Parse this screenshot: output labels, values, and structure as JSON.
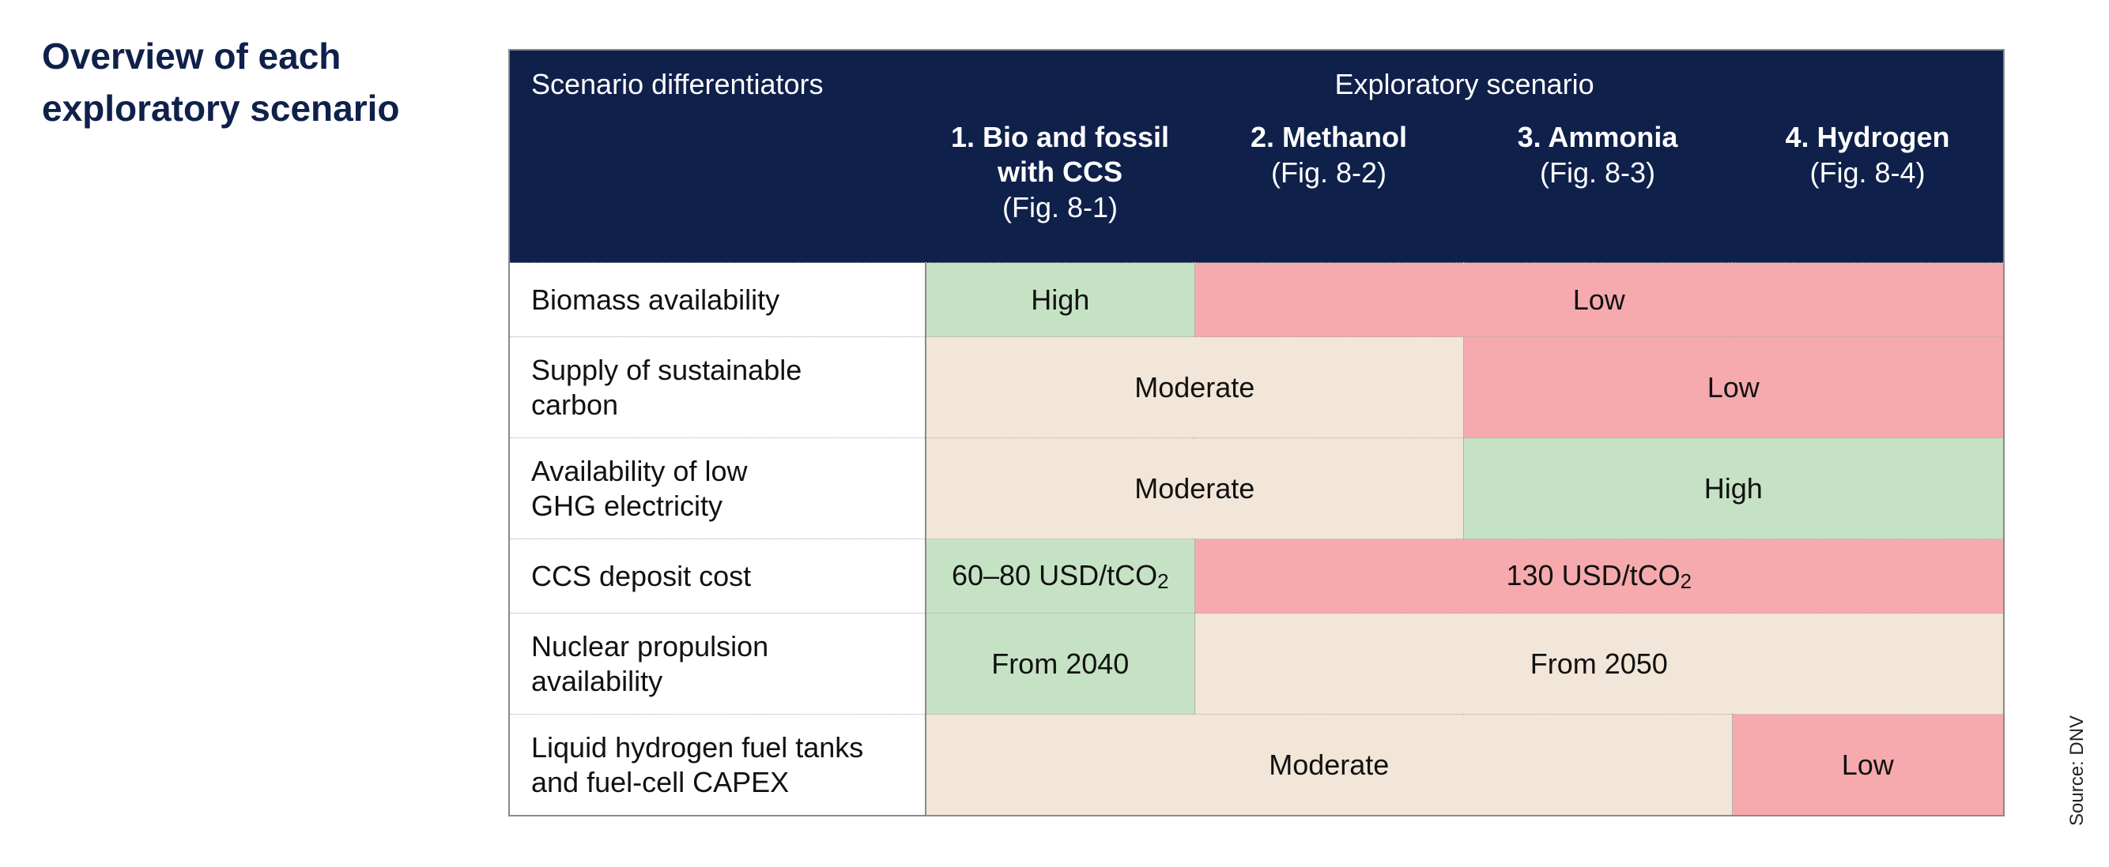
{
  "heading": {
    "line1": "Overview of each",
    "line2": "exploratory scenario"
  },
  "source_note": "Source: DNV",
  "colors": {
    "header_bg": "#0f204b",
    "high": "#c6e2c4",
    "moderate": "#f1e6d7",
    "low": "#f6aaad",
    "heading_text": "#0f204b"
  },
  "table": {
    "header_left": "Scenario differentiators",
    "header_span": "Exploratory scenario",
    "scenarios": [
      {
        "name": "1. Bio and fossil with CCS",
        "fig": "(Fig. 8-1)"
      },
      {
        "name": "2. Methanol",
        "fig": "(Fig. 8-2)"
      },
      {
        "name": "3. Ammonia",
        "fig": "(Fig. 8-3)"
      },
      {
        "name": "4. Hydrogen",
        "fig": "(Fig. 8-4)"
      }
    ],
    "rows": [
      {
        "label": [
          "Biomass availability"
        ],
        "cells": [
          {
            "value": "High",
            "level": "high",
            "span": 1
          },
          {
            "value": "Low",
            "level": "low",
            "span": 3
          }
        ]
      },
      {
        "label": [
          "Supply of sustainable",
          "carbon"
        ],
        "cells": [
          {
            "value": "Moderate",
            "level": "moderate",
            "span": 2
          },
          {
            "value": "Low",
            "level": "low",
            "span": 2
          }
        ]
      },
      {
        "label": [
          "Availability of low",
          "GHG electricity"
        ],
        "cells": [
          {
            "value": "Moderate",
            "level": "moderate",
            "span": 2
          },
          {
            "value": "High",
            "level": "high",
            "span": 2
          }
        ]
      },
      {
        "label": [
          "CCS deposit cost"
        ],
        "cells": [
          {
            "value": "60–80 USD/tCO",
            "sub": "2",
            "level": "high",
            "span": 1
          },
          {
            "value": "130 USD/tCO",
            "sub": "2",
            "level": "low",
            "span": 3
          }
        ]
      },
      {
        "label": [
          "Nuclear propulsion",
          "availability"
        ],
        "cells": [
          {
            "value": "From 2040",
            "level": "high",
            "span": 1
          },
          {
            "value": "From 2050",
            "level": "moderate",
            "span": 3
          }
        ]
      },
      {
        "label": [
          "Liquid hydrogen fuel tanks",
          "and fuel-cell CAPEX"
        ],
        "cells": [
          {
            "value": "Moderate",
            "level": "moderate",
            "span": 3
          },
          {
            "value": "Low",
            "level": "low",
            "span": 1
          }
        ]
      }
    ]
  }
}
